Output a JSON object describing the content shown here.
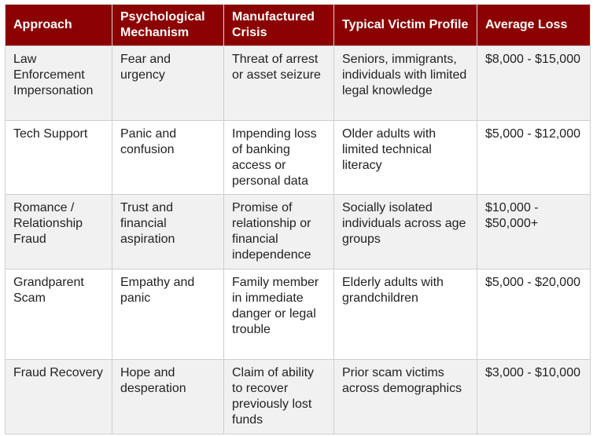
{
  "headers": [
    "Approach",
    "Psychological Mechanism",
    "Manufactured Crisis",
    "Typical Victim Profile",
    "Average Loss"
  ],
  "rows": [
    [
      "Law Enforcement Impersonation",
      "Fear and urgency",
      "Threat of arrest or asset seizure",
      "Seniors, immigrants, individuals with limited legal knowledge",
      "$8,000 - $15,000"
    ],
    [
      "Tech Support",
      "Panic and confusion",
      "Impending loss of banking access or personal data",
      "Older adults with limited technical literacy",
      "$5,000 - $12,000"
    ],
    [
      "Romance / Relationship Fraud",
      "Trust and financial aspiration",
      "Promise of relationship or financial independence",
      "Socially isolated individuals across age groups",
      "$10,000 - $50,000+"
    ],
    [
      "Grandparent Scam",
      "Empathy and panic",
      "Family member in immediate danger or legal trouble",
      "Elderly adults with grandchildren",
      "$5,000 - $20,000"
    ],
    [
      "Fraud Recovery",
      "Hope and desperation",
      "Claim of ability to recover previously lost funds",
      "Prior scam victims across demographics",
      "$3,000 - $10,000"
    ]
  ],
  "colors": {
    "header_bg": "#8b0000",
    "header_text": "#ffffff",
    "row_alt": "#f1f1f1"
  }
}
